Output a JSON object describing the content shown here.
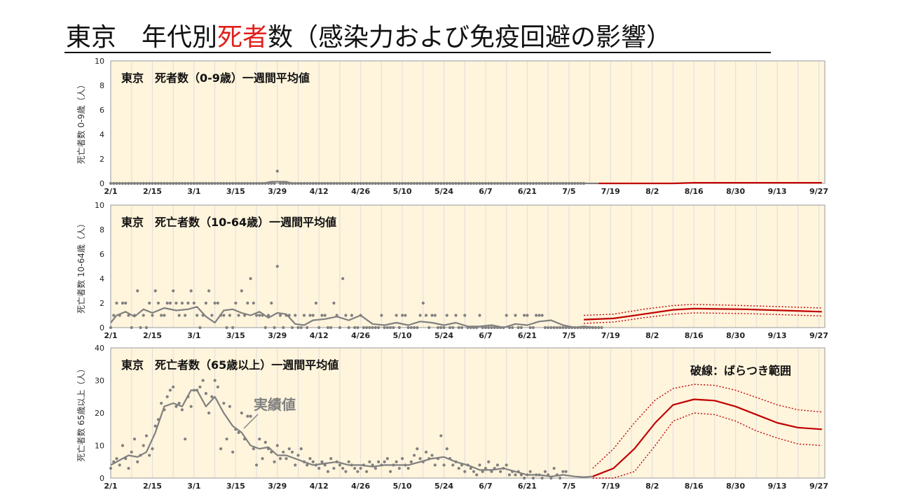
{
  "page_title": {
    "part1": "東京　年代別",
    "highlight": "死者",
    "part2": "数（感染力および免疫回避の影響）"
  },
  "colors": {
    "actual": "#808080",
    "forecast": "#c00000",
    "panel_bg": "#fff4dc",
    "grid": "#dedede",
    "highlight": "#e0201b"
  },
  "x_axis_labels": [
    "2/1",
    "2/15",
    "3/1",
    "3/15",
    "3/29",
    "4/12",
    "4/26",
    "5/10",
    "5/24",
    "6/7",
    "6/21",
    "7/5",
    "7/19",
    "8/2",
    "8/16",
    "8/30",
    "9/13",
    "9/27"
  ],
  "chart_data": [
    {
      "type": "line",
      "title": "東京　死者数（0-9歳）一週間平均値",
      "ylabel": "死亡者数 0-9歳（人）",
      "ylim": [
        0,
        10
      ],
      "yticks": [
        0,
        2,
        4,
        6,
        8,
        10
      ],
      "xticks": [
        "2/1",
        "2/15",
        "3/1",
        "3/15",
        "3/29",
        "4/12",
        "4/26",
        "5/10",
        "5/24",
        "6/7",
        "6/21",
        "7/5",
        "7/19",
        "8/2",
        "8/16",
        "8/30",
        "9/13",
        "9/27"
      ],
      "grid": true,
      "series": [
        {
          "kind": "daily_points",
          "start": "2/1",
          "values": [
            0,
            0,
            0,
            0,
            0,
            0,
            0,
            0,
            0,
            0,
            0,
            0,
            0,
            0,
            0,
            0,
            0,
            0,
            0,
            0,
            0,
            0,
            0,
            0,
            0,
            0,
            0,
            0,
            0,
            0,
            0,
            0,
            0,
            0,
            0,
            0,
            0,
            0,
            0,
            0,
            0,
            0,
            0,
            0,
            0,
            0,
            0,
            0,
            0,
            0,
            0,
            0,
            0,
            0,
            0,
            0,
            1,
            0,
            0,
            0,
            0,
            0,
            0,
            0,
            0,
            0,
            0,
            0,
            0,
            0,
            0,
            0,
            0,
            0,
            0,
            0,
            0,
            0,
            0,
            0,
            0,
            0,
            0,
            0,
            0,
            0,
            0,
            0,
            0,
            0,
            0,
            0,
            0,
            0,
            0,
            0,
            0,
            0,
            0,
            0,
            0,
            0,
            0,
            0,
            0,
            0,
            0,
            0,
            0,
            0,
            0,
            0,
            0,
            0,
            0,
            0,
            0,
            0,
            0,
            0,
            0,
            0,
            0,
            0,
            0,
            0,
            0,
            0,
            0,
            0,
            0,
            0,
            0,
            0,
            0,
            0,
            0,
            0,
            0,
            0,
            0,
            0,
            0,
            0,
            0,
            0,
            0,
            0,
            0,
            0,
            0,
            0,
            0,
            0,
            0,
            0,
            0,
            0,
            0,
            0
          ]
        },
        {
          "kind": "actual_avg",
          "x": [
            "2/1",
            "3/24",
            "3/27",
            "4/1",
            "4/3",
            "7/15"
          ],
          "values": [
            0,
            0,
            0.14,
            0.14,
            0,
            0
          ]
        },
        {
          "kind": "forecast",
          "x": [
            "7/15",
            "8/9",
            "8/16",
            "9/28"
          ],
          "values": [
            0,
            0,
            0.05,
            0.05
          ]
        }
      ]
    },
    {
      "type": "line",
      "title": "東京　死亡者数（10-64歳）一週間平均値",
      "ylabel": "死亡者数 10-64歳（人）",
      "ylim": [
        0,
        10
      ],
      "yticks": [
        0,
        2,
        4,
        6,
        8,
        10
      ],
      "xticks": [
        "2/1",
        "2/15",
        "3/1",
        "3/15",
        "3/29",
        "4/12",
        "4/26",
        "5/10",
        "5/24",
        "6/7",
        "6/21",
        "7/5",
        "7/19",
        "8/2",
        "8/16",
        "8/30",
        "9/13",
        "9/27"
      ],
      "grid": true,
      "series": [
        {
          "kind": "daily_points",
          "start": "2/1",
          "values": [
            0,
            1,
            2,
            1,
            2,
            2,
            1,
            0,
            1,
            3,
            0,
            1,
            0,
            2,
            1,
            3,
            2,
            1,
            1,
            2,
            2,
            3,
            2,
            1,
            2,
            1,
            2,
            3,
            2,
            1,
            0,
            1,
            2,
            3,
            1,
            2,
            2,
            1,
            1,
            0,
            1,
            0,
            2,
            1,
            3,
            1,
            2,
            4,
            2,
            1,
            1,
            1,
            0,
            1,
            2,
            0,
            5,
            1,
            0,
            1,
            1,
            0,
            1,
            0,
            0,
            1,
            0,
            1,
            1,
            2,
            0,
            1,
            1,
            0,
            0,
            2,
            1,
            0,
            4,
            1,
            0,
            1,
            0,
            0,
            1,
            0,
            0,
            0,
            0,
            0,
            0,
            1,
            0,
            0,
            0,
            0,
            1,
            0,
            1,
            1,
            0,
            0,
            0,
            0,
            1,
            2,
            1,
            0,
            1,
            1,
            0,
            0,
            0,
            1,
            0,
            0,
            1,
            0,
            0,
            1,
            0,
            0,
            0,
            0,
            1,
            0,
            0,
            0,
            0,
            0,
            0,
            0,
            0,
            1,
            0,
            0,
            1,
            0,
            0,
            1,
            1,
            0,
            0,
            1,
            1,
            1,
            0,
            0,
            0,
            0,
            0,
            0,
            0,
            0,
            0,
            0,
            0,
            0,
            0,
            0,
            0,
            0,
            0,
            0,
            0,
            0
          ]
        },
        {
          "kind": "actual_avg",
          "x": [
            "2/1",
            "2/3",
            "2/6",
            "2/9",
            "2/12",
            "2/15",
            "2/19",
            "2/23",
            "2/27",
            "3/2",
            "3/5",
            "3/8",
            "3/11",
            "3/14",
            "3/17",
            "3/20",
            "3/23",
            "3/26",
            "3/29",
            "4/1",
            "4/4",
            "4/7",
            "4/10",
            "4/14",
            "4/18",
            "4/22",
            "4/26",
            "4/30",
            "5/4",
            "5/8",
            "5/12",
            "5/16",
            "5/20",
            "5/24",
            "5/28",
            "6/1",
            "6/5",
            "6/9",
            "6/13",
            "6/17",
            "6/21",
            "6/25",
            "6/29",
            "7/3",
            "7/7",
            "7/10",
            "7/14"
          ],
          "values": [
            0.4,
            1.0,
            1.3,
            0.9,
            1.5,
            1.2,
            1.6,
            1.4,
            1.5,
            1.7,
            0.9,
            0.4,
            1.4,
            1.5,
            1.2,
            1.0,
            1.3,
            0.8,
            1.2,
            1.1,
            0.3,
            0.2,
            0.6,
            0.7,
            0.9,
            0.6,
            1.0,
            0.3,
            0.2,
            0.4,
            0.2,
            0.5,
            0.4,
            0.2,
            0.4,
            0.1,
            0.1,
            0.2,
            0.0,
            0.3,
            0.2,
            0.5,
            0.6,
            0.2,
            0.0,
            0.1,
            0.0
          ]
        },
        {
          "kind": "forecast",
          "x": [
            "7/10",
            "7/20",
            "7/30",
            "8/9",
            "8/16",
            "9/2",
            "9/28"
          ],
          "values": [
            0.65,
            0.75,
            1.1,
            1.45,
            1.55,
            1.5,
            1.3
          ]
        },
        {
          "kind": "forecast_upper",
          "x": [
            "7/10",
            "7/20",
            "7/30",
            "8/9",
            "8/16",
            "9/2",
            "9/28"
          ],
          "values": [
            1.0,
            1.1,
            1.5,
            1.8,
            1.9,
            1.8,
            1.6
          ]
        },
        {
          "kind": "forecast_lower",
          "x": [
            "7/10",
            "7/20",
            "7/30",
            "8/9",
            "8/16",
            "9/2",
            "9/28"
          ],
          "values": [
            0.35,
            0.45,
            0.8,
            1.1,
            1.2,
            1.15,
            0.95
          ]
        }
      ]
    },
    {
      "type": "line",
      "title": "東京　死亡者数（65歳以上）一週間平均値",
      "ylabel": "死亡者数 65歳以上（人）",
      "ylim": [
        0,
        40
      ],
      "yticks": [
        0,
        10,
        20,
        30,
        40
      ],
      "xticks": [
        "2/1",
        "2/15",
        "3/1",
        "3/15",
        "3/29",
        "4/12",
        "4/26",
        "5/10",
        "5/24",
        "6/7",
        "6/21",
        "7/5",
        "7/19",
        "8/2",
        "8/16",
        "8/30",
        "9/13",
        "9/27"
      ],
      "grid": true,
      "annotations": [
        "実績値",
        "破線：ばらつき範囲"
      ],
      "series": [
        {
          "kind": "daily_points",
          "start": "2/1",
          "values": [
            3,
            5,
            6,
            4,
            10,
            6,
            3,
            8,
            12,
            5,
            7,
            10,
            13,
            7,
            9,
            16,
            18,
            23,
            21,
            25,
            27,
            28,
            22,
            23,
            21,
            12,
            25,
            22,
            27,
            27,
            28,
            30,
            26,
            20,
            25,
            30,
            28,
            9,
            23,
            12,
            22,
            8,
            15,
            14,
            20,
            12,
            19,
            19,
            9,
            4,
            12,
            6,
            11,
            9,
            8,
            5,
            10,
            6,
            8,
            6,
            9,
            8,
            4,
            7,
            9,
            5,
            4,
            6,
            5,
            4,
            3,
            5,
            4,
            2,
            6,
            3,
            5,
            4,
            3,
            2,
            5,
            4,
            3,
            2,
            3,
            4,
            2,
            5,
            4,
            3,
            5,
            4,
            5,
            6,
            2,
            4,
            5,
            3,
            6,
            4,
            3,
            5,
            7,
            9,
            6,
            5,
            8,
            6,
            7,
            4,
            6,
            13,
            4,
            9,
            6,
            4,
            5,
            3,
            4,
            2,
            4,
            3,
            2,
            1,
            4,
            2,
            3,
            5,
            2,
            3,
            4,
            2,
            3,
            4,
            1,
            2,
            1,
            2,
            1,
            0,
            1,
            2,
            0,
            1,
            1,
            0,
            2,
            1,
            0,
            3,
            1,
            0,
            2,
            2
          ]
        },
        {
          "kind": "actual_avg",
          "x": [
            "2/1",
            "2/4",
            "2/7",
            "2/10",
            "2/13",
            "2/16",
            "2/19",
            "2/22",
            "2/25",
            "2/28",
            "3/2",
            "3/5",
            "3/8",
            "3/11",
            "3/14",
            "3/17",
            "3/20",
            "3/23",
            "3/26",
            "3/29",
            "4/1",
            "4/4",
            "4/7",
            "4/10",
            "4/14",
            "4/18",
            "4/22",
            "4/26",
            "4/30",
            "5/4",
            "5/8",
            "5/12",
            "5/16",
            "5/20",
            "5/24",
            "5/28",
            "6/1",
            "6/5",
            "6/9",
            "6/13",
            "6/17",
            "6/21",
            "6/25",
            "6/29",
            "7/3",
            "7/7",
            "7/10",
            "7/13"
          ],
          "values": [
            4,
            5.5,
            7,
            6.5,
            8,
            14,
            22,
            23,
            22,
            27,
            27,
            22,
            25,
            20,
            16,
            14,
            10,
            9,
            9.5,
            7,
            7,
            6,
            5,
            4,
            4.5,
            5,
            4,
            4,
            3.5,
            4,
            4,
            4,
            5,
            6,
            6.5,
            5,
            4,
            2.5,
            2.5,
            3,
            2,
            1,
            1,
            0.5,
            1,
            0.5,
            0.3,
            0.5
          ]
        },
        {
          "kind": "forecast",
          "x": [
            "7/13",
            "7/20",
            "7/27",
            "8/3",
            "8/9",
            "8/16",
            "8/23",
            "8/30",
            "9/6",
            "9/13",
            "9/20",
            "9/28"
          ],
          "values": [
            0.5,
            3,
            9,
            17,
            22.5,
            24.2,
            23.8,
            22,
            19.5,
            17,
            15.5,
            15
          ]
        },
        {
          "kind": "forecast_upper",
          "x": [
            "7/13",
            "7/20",
            "7/27",
            "8/3",
            "8/9",
            "8/16",
            "8/23",
            "8/30",
            "9/6",
            "9/13",
            "9/20",
            "9/28"
          ],
          "values": [
            3,
            9,
            17,
            24,
            27.5,
            28.8,
            28.5,
            27,
            24.8,
            22.5,
            21,
            20.3
          ]
        },
        {
          "kind": "forecast_lower",
          "x": [
            "7/13",
            "7/20",
            "7/27",
            "8/3",
            "8/9",
            "8/16",
            "8/23",
            "8/30",
            "9/6",
            "9/13",
            "9/20",
            "9/28"
          ],
          "values": [
            0,
            0,
            2,
            10,
            17.5,
            20,
            19.5,
            17.5,
            14.5,
            12.3,
            10.5,
            10
          ]
        }
      ]
    }
  ]
}
